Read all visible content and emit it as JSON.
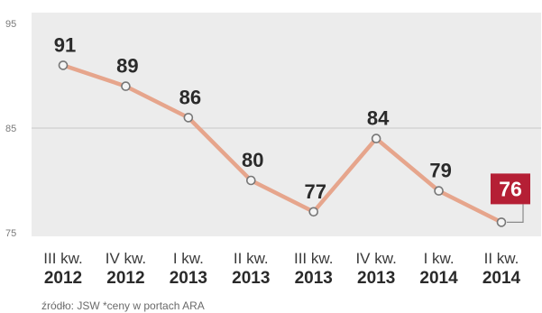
{
  "chart_data": {
    "type": "line",
    "title": "",
    "xlabel": "",
    "ylabel": "",
    "ylim": [
      75,
      95
    ],
    "y_ticks": [
      "75",
      "85",
      "95"
    ],
    "categories": [
      {
        "line1": "III kw.",
        "line2": "2012"
      },
      {
        "line1": "IV kw.",
        "line2": "2012"
      },
      {
        "line1": "I kw.",
        "line2": "2013"
      },
      {
        "line1": "II kw.",
        "line2": "2013"
      },
      {
        "line1": "III kw.",
        "line2": "2013"
      },
      {
        "line1": "IV kw.",
        "line2": "2013"
      },
      {
        "line1": "I kw.",
        "line2": "2014"
      },
      {
        "line1": "II kw.",
        "line2": "2014"
      }
    ],
    "values": [
      91,
      89,
      86,
      80,
      77,
      84,
      79,
      76
    ],
    "data_labels": [
      "91",
      "89",
      "86",
      "80",
      "77",
      "84",
      "79",
      "76"
    ],
    "highlight_index": 7,
    "grid": "horizontal",
    "source": "źródło: JSW *ceny w portach ARA"
  },
  "colors": {
    "line": "#e6a58c",
    "marker_fill": "#f4f4f4",
    "marker_stroke": "#777777",
    "band": "#ececec",
    "grid": "#cfcfcf",
    "highlight": "#b51f35"
  }
}
